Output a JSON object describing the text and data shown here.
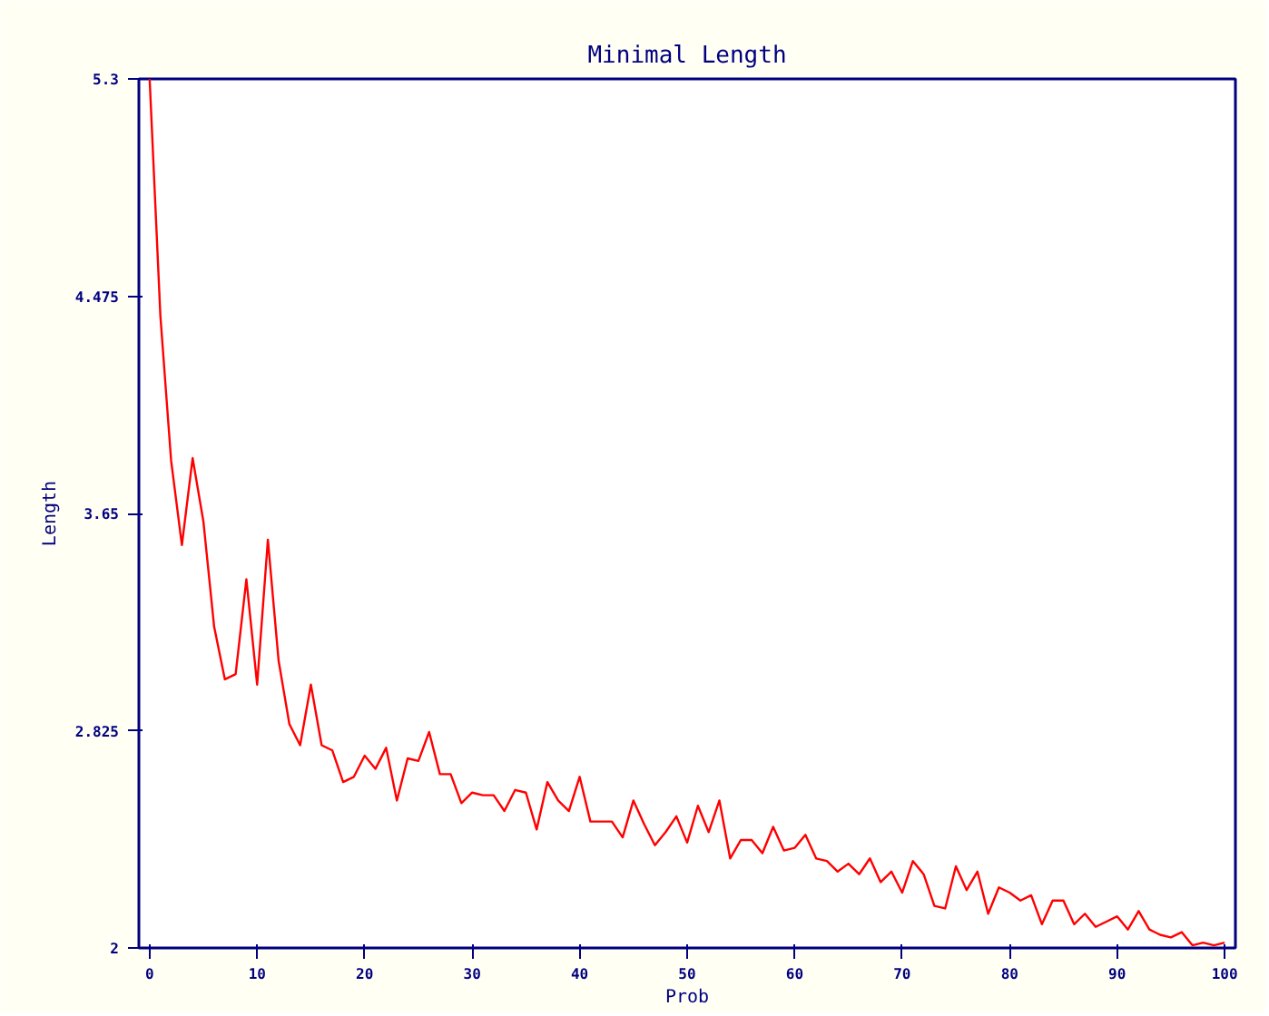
{
  "chart_data": {
    "type": "line",
    "title": "Minimal Length",
    "xlabel": "Prob",
    "ylabel": "Length",
    "x": [
      0,
      1,
      2,
      3,
      4,
      5,
      6,
      7,
      8,
      9,
      10,
      11,
      12,
      13,
      14,
      15,
      16,
      17,
      18,
      19,
      20,
      21,
      22,
      23,
      24,
      25,
      26,
      27,
      28,
      29,
      30,
      31,
      32,
      33,
      34,
      35,
      36,
      37,
      38,
      39,
      40,
      41,
      42,
      43,
      44,
      45,
      46,
      47,
      48,
      49,
      50,
      51,
      52,
      53,
      54,
      55,
      56,
      57,
      58,
      59,
      60,
      61,
      62,
      63,
      64,
      65,
      66,
      67,
      68,
      69,
      70,
      71,
      72,
      73,
      74,
      75,
      76,
      77,
      78,
      79,
      80,
      81,
      82,
      83,
      84,
      85,
      86,
      87,
      88,
      89,
      90,
      91,
      92,
      93,
      94,
      95,
      96,
      97,
      98,
      99,
      100
    ],
    "series": [
      {
        "color": "#ff0000",
        "values": [
          5.3,
          4.4,
          3.85,
          3.53,
          3.86,
          3.62,
          3.22,
          3.02,
          3.04,
          3.4,
          3.0,
          3.55,
          3.09,
          2.85,
          2.77,
          3.0,
          2.77,
          2.75,
          2.63,
          2.65,
          2.73,
          2.68,
          2.76,
          2.56,
          2.72,
          2.71,
          2.82,
          2.66,
          2.66,
          2.55,
          2.59,
          2.58,
          2.58,
          2.52,
          2.6,
          2.59,
          2.45,
          2.63,
          2.56,
          2.52,
          2.65,
          2.48,
          2.48,
          2.48,
          2.42,
          2.56,
          2.47,
          2.39,
          2.44,
          2.5,
          2.4,
          2.54,
          2.44,
          2.56,
          2.34,
          2.41,
          2.41,
          2.36,
          2.46,
          2.37,
          2.38,
          2.43,
          2.34,
          2.33,
          2.29,
          2.32,
          2.28,
          2.34,
          2.25,
          2.29,
          2.21,
          2.33,
          2.28,
          2.16,
          2.15,
          2.31,
          2.22,
          2.29,
          2.13,
          2.23,
          2.21,
          2.18,
          2.2,
          2.09,
          2.18,
          2.18,
          2.09,
          2.13,
          2.08,
          2.1,
          2.12,
          2.07,
          2.14,
          2.07,
          2.05,
          2.04,
          2.06,
          2.01,
          2.02,
          2.01,
          2.02
        ]
      }
    ],
    "xlim": [
      -1,
      101
    ],
    "ylim": [
      2,
      5.3
    ],
    "xticks": [
      0,
      10,
      20,
      30,
      40,
      50,
      60,
      70,
      80,
      90,
      100
    ],
    "yticks": [
      2,
      2.825,
      3.65,
      4.475,
      5.3
    ],
    "grid": false,
    "marker": "none",
    "line_style": "solid"
  }
}
